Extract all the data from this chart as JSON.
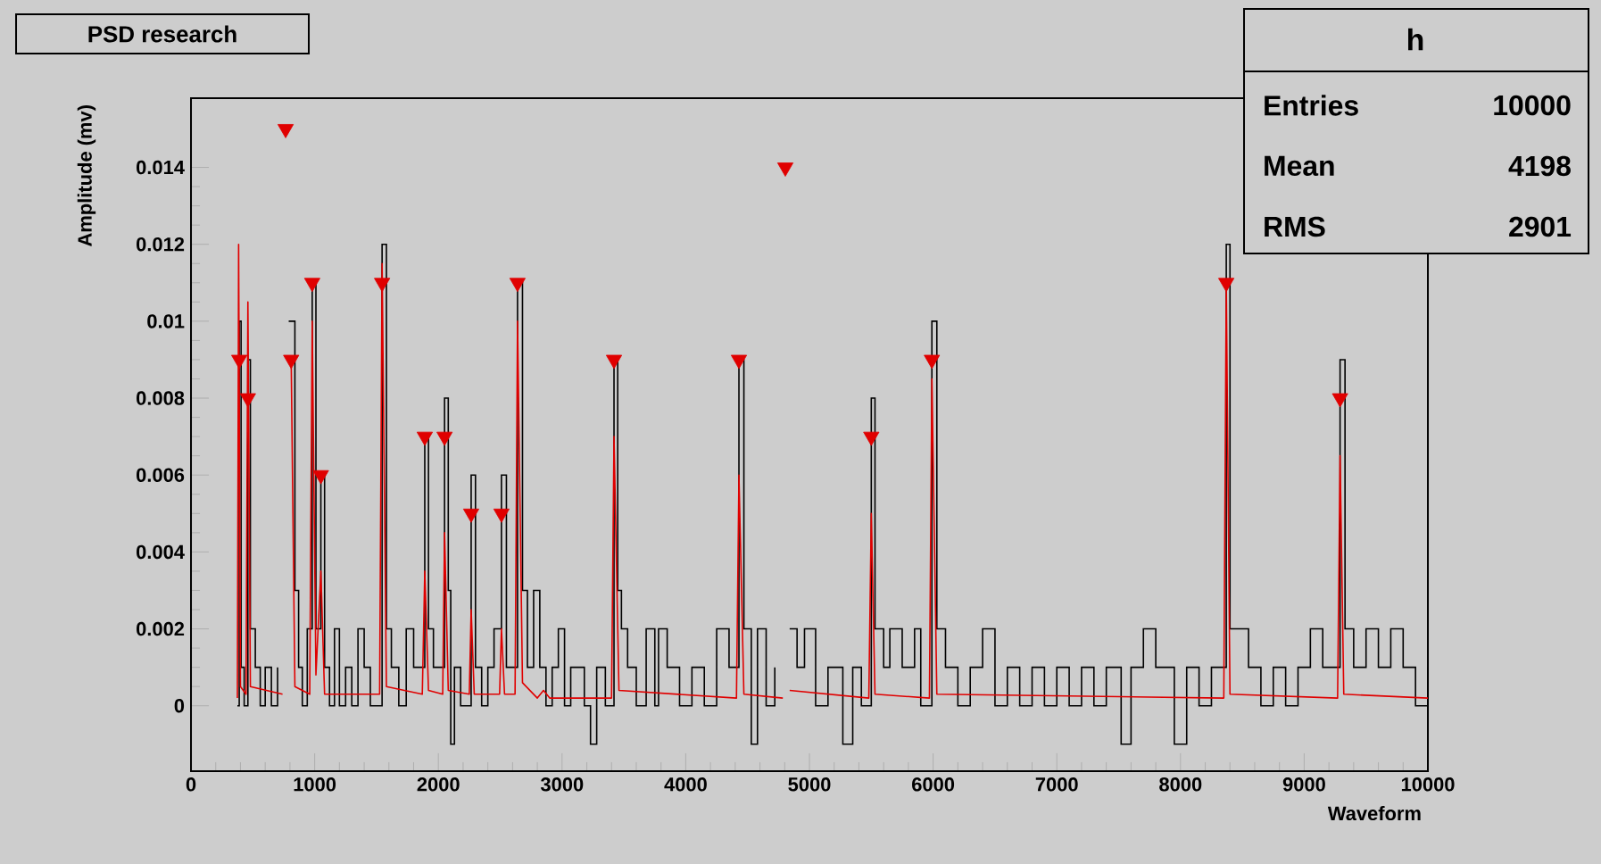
{
  "chart_data": {
    "type": "line",
    "title": "PSD research",
    "xlabel": "Waveform",
    "ylabel": "Amplitude (mv)",
    "xlim": [
      0,
      10000
    ],
    "ylim": [
      -0.0017,
      0.0158
    ],
    "xticks": [
      0,
      1000,
      2000,
      3000,
      4000,
      5000,
      6000,
      7000,
      8000,
      9000,
      10000
    ],
    "yticks": [
      0,
      0.002,
      0.004,
      0.006,
      0.008,
      0.01,
      0.012,
      0.014
    ],
    "grid": false,
    "annotations": [
      "h",
      "Entries",
      "10000",
      "Mean",
      "4198",
      "RMS",
      "2901"
    ],
    "series": [
      {
        "type": "step",
        "color": "#000000",
        "x": [
          375,
          390,
          405,
          430,
          460,
          480,
          520,
          560,
          600,
          650,
          700,
          760,
          790,
          810,
          840,
          870,
          900,
          940,
          980,
          1010,
          1050,
          1080,
          1120,
          1160,
          1200,
          1250,
          1300,
          1350,
          1400,
          1450,
          1545,
          1580,
          1620,
          1680,
          1740,
          1800,
          1890,
          1920,
          1960,
          2050,
          2080,
          2100,
          2130,
          2180,
          2265,
          2300,
          2350,
          2400,
          2450,
          2510,
          2550,
          2640,
          2680,
          2720,
          2770,
          2820,
          2870,
          2920,
          2970,
          3020,
          3070,
          3120,
          3180,
          3230,
          3280,
          3350,
          3420,
          3450,
          3480,
          3530,
          3600,
          3680,
          3750,
          3780,
          3850,
          3950,
          4050,
          4150,
          4250,
          4350,
          4430,
          4470,
          4530,
          4580,
          4650,
          4720,
          4805,
          4840,
          4900,
          4960,
          5050,
          5150,
          5270,
          5350,
          5420,
          5500,
          5530,
          5600,
          5650,
          5750,
          5850,
          5900,
          5990,
          6030,
          6100,
          6200,
          6300,
          6400,
          6500,
          6600,
          6700,
          6800,
          6900,
          7000,
          7100,
          7200,
          7300,
          7400,
          7520,
          7600,
          7700,
          7800,
          7950,
          8050,
          8150,
          8250,
          8370,
          8400,
          8450,
          8550,
          8650,
          8750,
          8850,
          8950,
          9050,
          9150,
          9290,
          9330,
          9400,
          9500,
          9600,
          9700,
          9800,
          9900,
          10000
        ],
        "values": [
          0,
          0.01,
          0.001,
          0,
          0.009,
          0.002,
          0.001,
          0,
          0.001,
          0,
          0.001,
          null,
          0.01,
          0.01,
          0.003,
          0.001,
          0,
          0.002,
          0.011,
          0.002,
          0.006,
          0.001,
          0,
          0.002,
          0,
          0.001,
          0,
          0.002,
          0.001,
          0,
          0.012,
          0.002,
          0.001,
          0,
          0.002,
          0.001,
          0.007,
          0.002,
          0.001,
          0.008,
          0.003,
          -0.001,
          0.001,
          0,
          0.006,
          0.001,
          0,
          0.001,
          0.002,
          0.006,
          0.001,
          0.011,
          0.003,
          0.001,
          0.003,
          0.001,
          0,
          0.001,
          0.002,
          0,
          0.001,
          0.001,
          0,
          -0.001,
          0.001,
          0,
          0.009,
          0.003,
          0.002,
          0.001,
          0,
          0.002,
          0,
          0.002,
          0.001,
          0,
          0.001,
          0,
          0.002,
          0.001,
          0.009,
          0.002,
          -0.001,
          0.002,
          0,
          0.001,
          null,
          0.002,
          0.001,
          0.002,
          0,
          0.001,
          -0.001,
          0.001,
          0,
          0.008,
          0.002,
          0.001,
          0.002,
          0.001,
          0.002,
          0,
          0.01,
          0.002,
          0.001,
          0,
          0.001,
          0.002,
          0,
          0.001,
          0,
          0.001,
          0,
          0.001,
          0,
          0.001,
          0,
          0.001,
          -0.001,
          0.001,
          0.002,
          0.001,
          -0.001,
          0.001,
          0,
          0.001,
          0.012,
          0.002,
          0.002,
          0.001,
          0,
          0.001,
          0,
          0.001,
          0.002,
          0.001,
          0.009,
          0.002,
          0.001,
          0.002,
          0.001,
          0.002,
          0.001,
          0,
          0.001
        ]
      },
      {
        "color": "#e00000",
        "x": [
          375,
          385,
          400,
          445,
          460,
          480,
          740,
          765,
          790,
          810,
          840,
          960,
          980,
          1010,
          1050,
          1080,
          1525,
          1545,
          1580,
          1870,
          1890,
          1920,
          2035,
          2050,
          2080,
          2250,
          2265,
          2290,
          2495,
          2510,
          2535,
          2620,
          2640,
          2680,
          2800,
          2850,
          2900,
          3400,
          3420,
          3460,
          4410,
          4430,
          4470,
          4785,
          4805,
          4840,
          5480,
          5500,
          5530,
          5970,
          5990,
          6030,
          8350,
          8370,
          8400,
          9270,
          9290,
          9320,
          10000
        ],
        "values": [
          0.0002,
          0.012,
          0.0005,
          0.0003,
          0.0105,
          0.0005,
          0.0003,
          null,
          0.009,
          0.009,
          0.0005,
          0.0003,
          0.01,
          0.0008,
          0.0035,
          0.0003,
          0.0003,
          0.0115,
          0.0005,
          0.0003,
          0.0035,
          0.0004,
          0.0003,
          0.0045,
          0.0004,
          0.0003,
          0.0025,
          0.0003,
          0.0003,
          0.002,
          0.0003,
          0.0003,
          0.01,
          0.0006,
          0.0002,
          0.0004,
          0.0002,
          0.0002,
          0.007,
          0.0004,
          0.0002,
          0.006,
          0.0003,
          0.0002,
          null,
          0.0004,
          0.0002,
          0.005,
          0.0003,
          0.0002,
          0.0085,
          0.0003,
          0.0002,
          0.011,
          0.0003,
          0.0002,
          0.0065,
          0.0003,
          0.0002
        ]
      },
      {
        "type": "scatter",
        "marker": "triangle",
        "color": "#e00000",
        "x": [
          390,
          460,
          765,
          810,
          980,
          1050,
          1545,
          1890,
          2050,
          2265,
          2510,
          2640,
          3420,
          4430,
          4805,
          5500,
          5990,
          8370,
          9290
        ],
        "values": [
          0.009,
          0.008,
          0.015,
          0.009,
          0.011,
          0.006,
          0.011,
          0.007,
          0.007,
          0.005,
          0.005,
          0.011,
          0.009,
          0.009,
          0.014,
          0.007,
          0.009,
          0.011,
          0.008
        ]
      }
    ]
  }
}
